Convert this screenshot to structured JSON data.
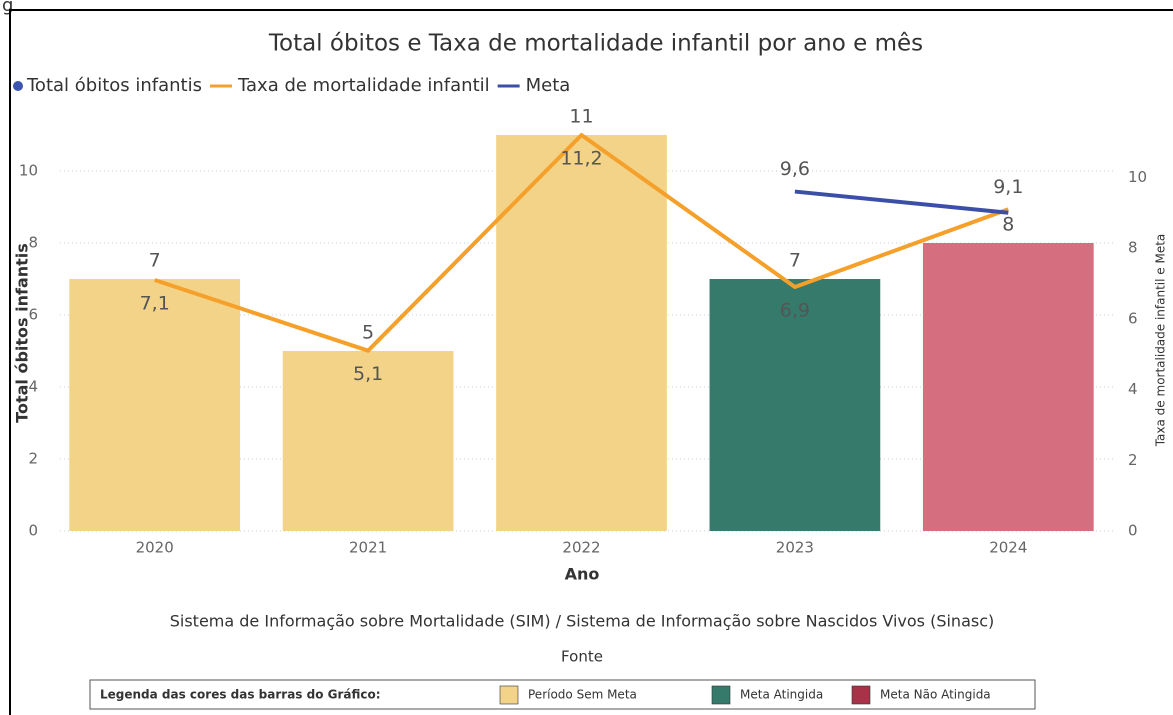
{
  "page_fragment": "g",
  "chart_data": {
    "type": "bar",
    "title": "Total óbitos e Taxa de mortalidade infantil por ano e mês",
    "x_label": "Ano",
    "y_label": "Total óbitos infantis",
    "y2_label": "Taxa de mortalidade infantil e Meta",
    "categories": [
      "2020",
      "2021",
      "2022",
      "2023",
      "2024"
    ],
    "series": [
      {
        "name": "Total óbitos infantis",
        "type": "bar",
        "color": "#3b55b0",
        "values": [
          7,
          5,
          11,
          7,
          8
        ],
        "bar_colors": [
          "#f2d388",
          "#f2d388",
          "#f2d388",
          "#357a6b",
          "#d56e7e"
        ]
      },
      {
        "name": "Taxa de mortalidade infantil",
        "type": "line",
        "axis": "y2",
        "color": "#f5a02a",
        "values": [
          7.1,
          5.1,
          11.2,
          6.9,
          9.1
        ],
        "value_labels": [
          "7,1",
          "5,1",
          "11,2",
          "6,9",
          "9,1"
        ]
      },
      {
        "name": "Meta",
        "type": "line",
        "axis": "y2",
        "color": "#3b4fa8",
        "values": [
          null,
          null,
          null,
          9.6,
          9.0
        ],
        "value_labels": [
          null,
          null,
          null,
          "9,6",
          null
        ]
      }
    ],
    "ylim": [
      0,
      11
    ],
    "yticks": [
      0,
      2,
      4,
      6,
      8,
      10
    ],
    "y2lim": [
      0,
      11.2
    ],
    "y2ticks": [
      0,
      2,
      4,
      6,
      8,
      10
    ],
    "grid": true,
    "legend": "top-left",
    "source_text": "Sistema de Informação sobre Mortalidade (SIM) / Sistema de Informação sobre Nascidos Vivos (Sinasc)",
    "source_label": "Fonte",
    "bar_color_legend": {
      "title": "Legenda das cores das barras do Gráfico:",
      "items": [
        {
          "label": "Período Sem Meta",
          "color": "#f2d388"
        },
        {
          "label": "Meta Atingida",
          "color": "#357a6b"
        },
        {
          "label": "Meta Não Atingida",
          "color": "#a83248"
        }
      ]
    }
  }
}
